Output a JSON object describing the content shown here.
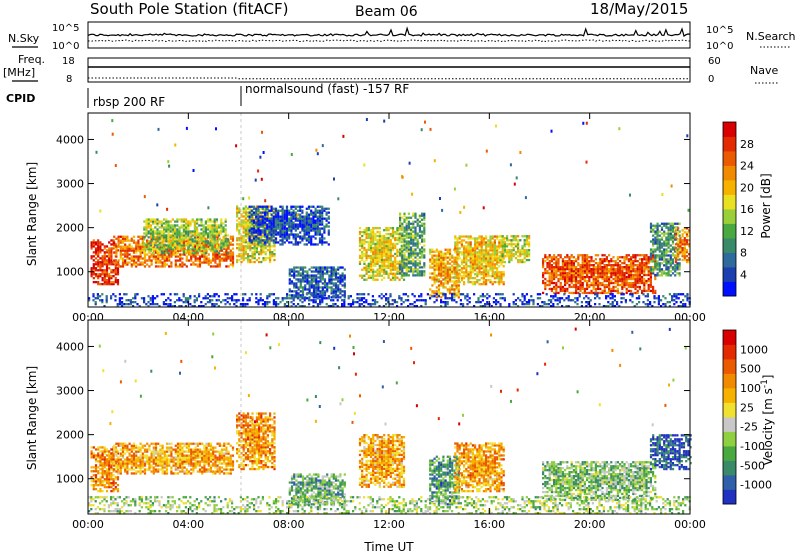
{
  "header": {
    "title": "South Pole Station (fitACF)",
    "beam": "Beam 06",
    "date": "18/May/2015"
  },
  "labels": {
    "nsky": "N.Sky",
    "freq": "Freq.",
    "mhz": "[MHz]",
    "cpid": "CPID",
    "nsearch": "N.Search",
    "nave": "Nave",
    "cpid_mode_1": "rbsp 200 RF",
    "cpid_mode_2": "normalsound (fast) -157 RF",
    "xlabel": "Time UT"
  },
  "chart_data": [
    {
      "type": "line",
      "panel": "noise",
      "series": [
        {
          "name": "N.Sky",
          "style": "solid"
        },
        {
          "name": "N.Search",
          "style": "dotted"
        }
      ],
      "left_ticks": [
        "10^5",
        "10^0"
      ],
      "right_ticks": [
        "10^5",
        "10^0"
      ],
      "scale": "log"
    },
    {
      "type": "line",
      "panel": "frequency",
      "left_ticks": [
        "18",
        "8"
      ],
      "right_ticks": [
        "60",
        "0"
      ],
      "series": [
        {
          "name": "Freq.",
          "approx_value_mhz": 11
        },
        {
          "name": "Nave",
          "segments": [
            {
              "from_hour": 0,
              "to_hour": 6,
              "value": 10
            },
            {
              "from_hour": 6,
              "to_hour": 24,
              "value": 8
            }
          ]
        }
      ]
    },
    {
      "type": "heatmap",
      "panel": "power",
      "ylabel": "Slant Range [km]",
      "xlabel": "Time UT",
      "xlim": [
        0,
        24
      ],
      "ylim": [
        200,
        4600
      ],
      "x_ticks": [
        "00:00",
        "04:00",
        "08:00",
        "12:00",
        "16:00",
        "20:00",
        "00:00"
      ],
      "y_ticks": [
        1000,
        2000,
        3000,
        4000
      ],
      "colorbar": {
        "label": "Power [dB]",
        "ticks": [
          "4",
          "8",
          "12",
          "16",
          "20",
          "24",
          "28"
        ],
        "colors": [
          "#0010ff",
          "#1c3fb0",
          "#2e6a9c",
          "#3a8a6a",
          "#4aa840",
          "#9bcf3a",
          "#e8e020",
          "#f7b200",
          "#f28a00",
          "#ec5a00",
          "#e42a00",
          "#d80000"
        ]
      },
      "patches": [
        {
          "t0": 0.1,
          "t1": 1.2,
          "r0": 700,
          "r1": 1700,
          "level": 0.9
        },
        {
          "t0": 1.0,
          "t1": 5.8,
          "r0": 1100,
          "r1": 1800,
          "level": 0.75
        },
        {
          "t0": 2.2,
          "t1": 5.6,
          "r0": 1400,
          "r1": 2200,
          "level": 0.45
        },
        {
          "t0": 5.9,
          "t1": 7.4,
          "r0": 1200,
          "r1": 2500,
          "level": 0.55
        },
        {
          "t0": 6.4,
          "t1": 9.6,
          "r0": 1600,
          "r1": 2500,
          "level": 0.15
        },
        {
          "t0": 8.0,
          "t1": 10.2,
          "r0": 400,
          "r1": 1100,
          "level": 0.2
        },
        {
          "t0": 10.8,
          "t1": 12.6,
          "r0": 800,
          "r1": 2000,
          "level": 0.55
        },
        {
          "t0": 12.4,
          "t1": 13.4,
          "r0": 900,
          "r1": 2300,
          "level": 0.35
        },
        {
          "t0": 13.6,
          "t1": 14.8,
          "r0": 400,
          "r1": 1500,
          "level": 0.65
        },
        {
          "t0": 14.6,
          "t1": 16.6,
          "r0": 700,
          "r1": 1800,
          "level": 0.6
        },
        {
          "t0": 16.4,
          "t1": 17.6,
          "r0": 1200,
          "r1": 1800,
          "level": 0.5
        },
        {
          "t0": 18.1,
          "t1": 22.6,
          "r0": 500,
          "r1": 1400,
          "level": 0.82
        },
        {
          "t0": 22.4,
          "t1": 23.6,
          "r0": 900,
          "r1": 2100,
          "level": 0.3
        },
        {
          "t0": 23.4,
          "t1": 24.0,
          "r0": 1200,
          "r1": 2000,
          "level": 0.7
        },
        {
          "t0": 0.0,
          "t1": 24.0,
          "r0": 200,
          "r1": 500,
          "level": 0.12
        }
      ]
    },
    {
      "type": "heatmap",
      "panel": "velocity",
      "ylabel": "Slant Range [km]",
      "xlabel": "Time UT",
      "xlim": [
        0,
        24
      ],
      "ylim": [
        200,
        4600
      ],
      "x_ticks": [
        "00:00",
        "04:00",
        "08:00",
        "12:00",
        "16:00",
        "20:00",
        "00:00"
      ],
      "y_ticks": [
        1000,
        2000,
        3000,
        4000
      ],
      "colorbar": {
        "label": "Velocity [m s^-1]",
        "ticks": [
          "1000",
          "500",
          "100",
          "25",
          "-25",
          "-100",
          "-500",
          "-1000"
        ],
        "colors": [
          "#2030c0",
          "#2e5fa8",
          "#3a8a6a",
          "#4aa840",
          "#8fd040",
          "#c8c8c8",
          "#f0e030",
          "#f7b200",
          "#f28a00",
          "#ec5a00",
          "#e42a00",
          "#d80000"
        ]
      },
      "patches": [
        {
          "t0": 0.1,
          "t1": 1.2,
          "r0": 700,
          "r1": 1700,
          "level": 0.7
        },
        {
          "t0": 1.0,
          "t1": 5.8,
          "r0": 1100,
          "r1": 1800,
          "level": 0.66
        },
        {
          "t0": 5.9,
          "t1": 7.4,
          "r0": 1200,
          "r1": 2500,
          "level": 0.68
        },
        {
          "t0": 8.0,
          "t1": 10.2,
          "r0": 400,
          "r1": 1100,
          "level": 0.3
        },
        {
          "t0": 10.8,
          "t1": 12.6,
          "r0": 800,
          "r1": 2000,
          "level": 0.65
        },
        {
          "t0": 13.6,
          "t1": 14.8,
          "r0": 400,
          "r1": 1500,
          "level": 0.25
        },
        {
          "t0": 14.6,
          "t1": 16.6,
          "r0": 700,
          "r1": 1800,
          "level": 0.67
        },
        {
          "t0": 18.1,
          "t1": 22.6,
          "r0": 500,
          "r1": 1400,
          "level": 0.35
        },
        {
          "t0": 22.4,
          "t1": 24.0,
          "r0": 1200,
          "r1": 2000,
          "level": 0.1
        },
        {
          "t0": 0.0,
          "t1": 24.0,
          "r0": 200,
          "r1": 600,
          "level": 0.4
        }
      ]
    }
  ]
}
